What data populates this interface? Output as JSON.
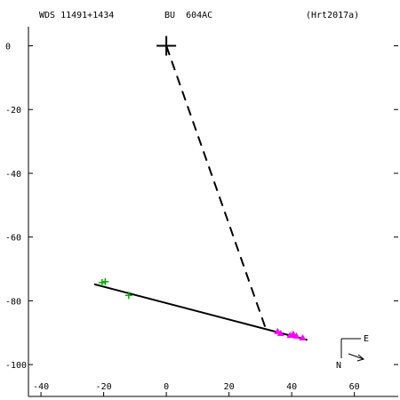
{
  "header": {
    "wds": "WDS 11491+1434",
    "designation": "BU  604AC",
    "reference": "(Hrt2017a)"
  },
  "compass": {
    "north_label": "N",
    "east_label": "E"
  },
  "chart_data": {
    "type": "scatter",
    "title": "",
    "xlabel": "",
    "ylabel": "",
    "xlim": [
      -44,
      74
    ],
    "ylim": [
      -110,
      6
    ],
    "x_ticks": [
      -40,
      -20,
      0,
      20,
      40,
      60
    ],
    "y_ticks": [
      0,
      -20,
      -40,
      -60,
      -80,
      -100
    ],
    "grid": false,
    "primary": {
      "x": 0,
      "y": 0
    },
    "fit_line": {
      "from": [
        -23,
        -74.8
      ],
      "to": [
        45,
        -92.3
      ]
    },
    "dashed_link": {
      "from": [
        0,
        0
      ],
      "to": [
        32,
        -89.5
      ]
    },
    "series": [
      {
        "marker": "plus",
        "color": "#00aa00",
        "points": [
          [
            -20.5,
            -74.3
          ],
          [
            -19.5,
            -74.0
          ],
          [
            -12,
            -78.3
          ]
        ]
      },
      {
        "marker": "triangle",
        "color": "#ff00ff",
        "points": [
          [
            35.5,
            -89.6
          ],
          [
            36.5,
            -90.2
          ],
          [
            39.5,
            -90.8
          ],
          [
            40.5,
            -90.4
          ],
          [
            41.5,
            -91.0
          ],
          [
            43.5,
            -91.6
          ]
        ]
      }
    ]
  }
}
